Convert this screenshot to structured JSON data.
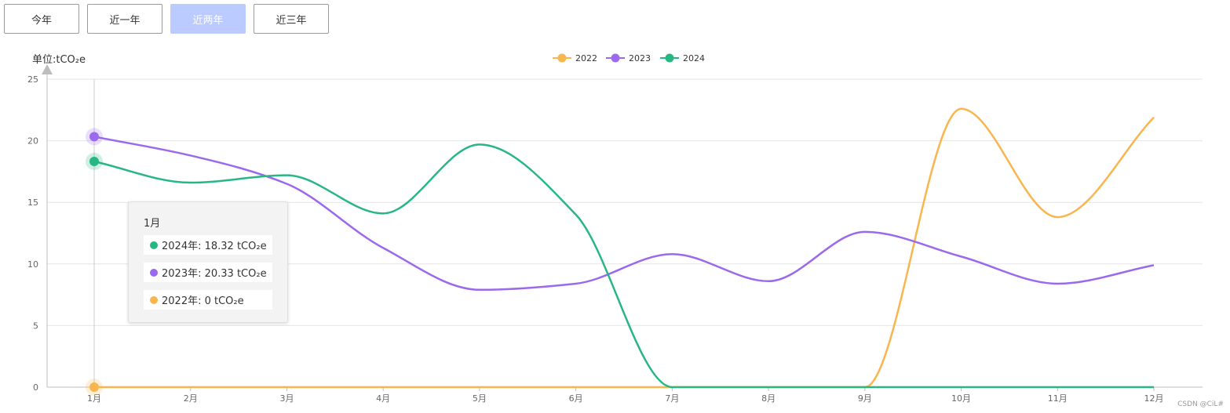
{
  "tabs": [
    {
      "label": "今年",
      "active": false
    },
    {
      "label": "近一年",
      "active": false
    },
    {
      "label": "近两年",
      "active": true
    },
    {
      "label": "近三年",
      "active": false
    }
  ],
  "colors": {
    "2022": "#f9b54e",
    "2023": "#9a69ee",
    "2024": "#27b783",
    "tab_active_bg": "#bccbff"
  },
  "chart_data": {
    "type": "line",
    "smooth": true,
    "ylabel": "单位:tCO₂e",
    "ylim": [
      0,
      25
    ],
    "yticks": [
      0,
      5,
      10,
      15,
      20,
      25
    ],
    "categories": [
      "1月",
      "2月",
      "3月",
      "4月",
      "5月",
      "6月",
      "7月",
      "8月",
      "9月",
      "10月",
      "11月",
      "12月"
    ],
    "legend_position": "top-center",
    "grid": "horizontal",
    "series": [
      {
        "name": "2022",
        "color": "#f9b54e",
        "values": [
          0,
          0,
          0,
          0,
          0,
          0,
          0,
          0,
          0,
          22.6,
          13.8,
          21.9
        ]
      },
      {
        "name": "2023",
        "color": "#9a69ee",
        "values": [
          20.33,
          18.8,
          16.5,
          11.3,
          7.9,
          8.4,
          10.8,
          8.6,
          12.6,
          10.6,
          8.4,
          9.9
        ]
      },
      {
        "name": "2024",
        "color": "#27b783",
        "values": [
          18.32,
          16.6,
          17.2,
          14.1,
          19.7,
          14.0,
          0,
          0,
          0,
          0,
          0,
          0
        ]
      }
    ]
  },
  "tooltip": {
    "title": "1月",
    "rows": [
      {
        "series": "2024",
        "text": "2024年: 18.32 tCO₂e"
      },
      {
        "series": "2023",
        "text": "2023年: 20.33 tCO₂e"
      },
      {
        "series": "2022",
        "text": "2022年: 0 tCO₂e"
      }
    ]
  },
  "watermark": "CSDN @CiL#"
}
